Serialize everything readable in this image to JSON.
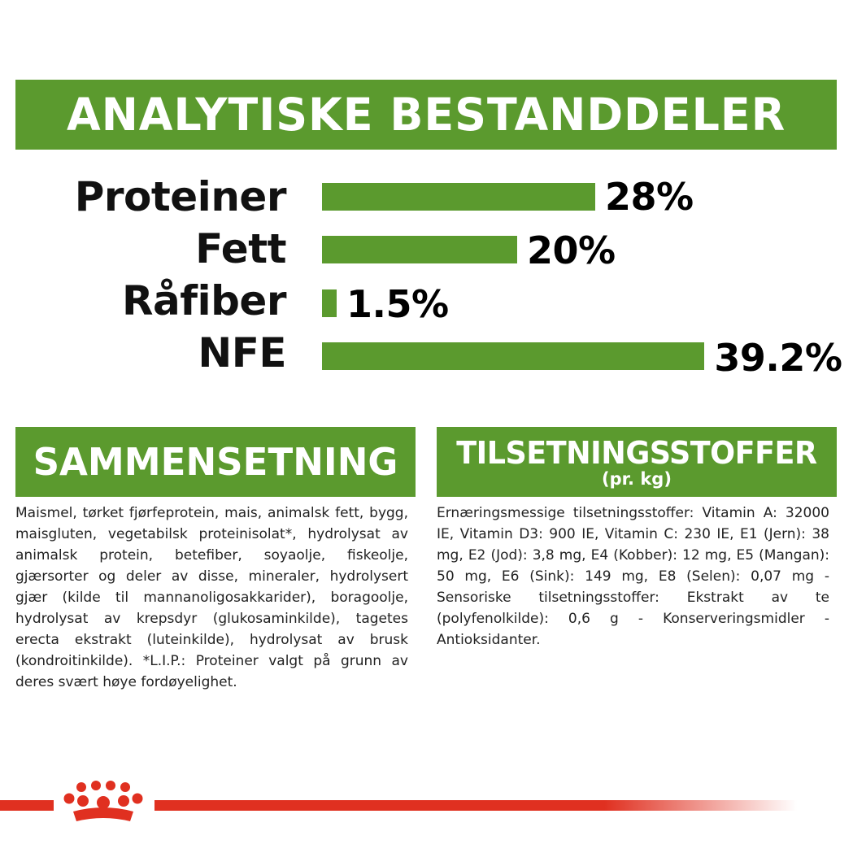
{
  "banner": {
    "title": "ANALYTISKE BESTANDDELER"
  },
  "nutrients": [
    {
      "label": "Proteiner",
      "value_text": "28%",
      "value": 28
    },
    {
      "label": "Fett",
      "value_text": "20%",
      "value": 20
    },
    {
      "label": "Råfiber",
      "value_text": "1.5%",
      "value": 1.5
    },
    {
      "label": "NFE",
      "value_text": "39.2%",
      "value": 39.2
    }
  ],
  "composition": {
    "title": "SAMMENSETNING",
    "text": "Maismel, tørket fjørfeprotein, mais, animalsk fett, bygg, maisgluten, vegetabilsk proteinisolat*, hydrolysat av animalsk protein, betefiber, soyaolje, fiskeolje, gjærsorter og deler av disse, mineraler, hydrolysert gjær (kilde til mannanoligosakkarider), boragoolje, hydrolysat av krepsdyr (glukosaminkilde), tagetes erecta ekstrakt (luteinkilde), hydrolysat av brusk (kondroitinkilde). *L.I.P.: Proteiner valgt på grunn av deres svært høye fordøyelighet."
  },
  "additives": {
    "title": "TILSETNINGSSTOFFER",
    "subtitle": "(pr. kg)",
    "text": "Ernæringsmessige tilsetningsstoffer: Vitamin A: 32000 IE, Vitamin D3: 900 IE, Vitamin C: 230 IE, E1 (Jern): 38 mg, E2 (Jod): 3,8 mg, E4 (Kobber): 12 mg, E5 (Mangan): 50 mg, E6 (Sink): 149 mg, E8 (Selen): 0,07 mg - Sensoriske tilsetningsstoffer: Ekstrakt av te (polyfenolkilde): 0,6 g - Konserveringsmidler - Antioksidanter."
  },
  "colors": {
    "brand_green": "#5b9a2e",
    "brand_red": "#e03020"
  },
  "footer": {
    "logo": "royal-canin-crown-icon"
  }
}
